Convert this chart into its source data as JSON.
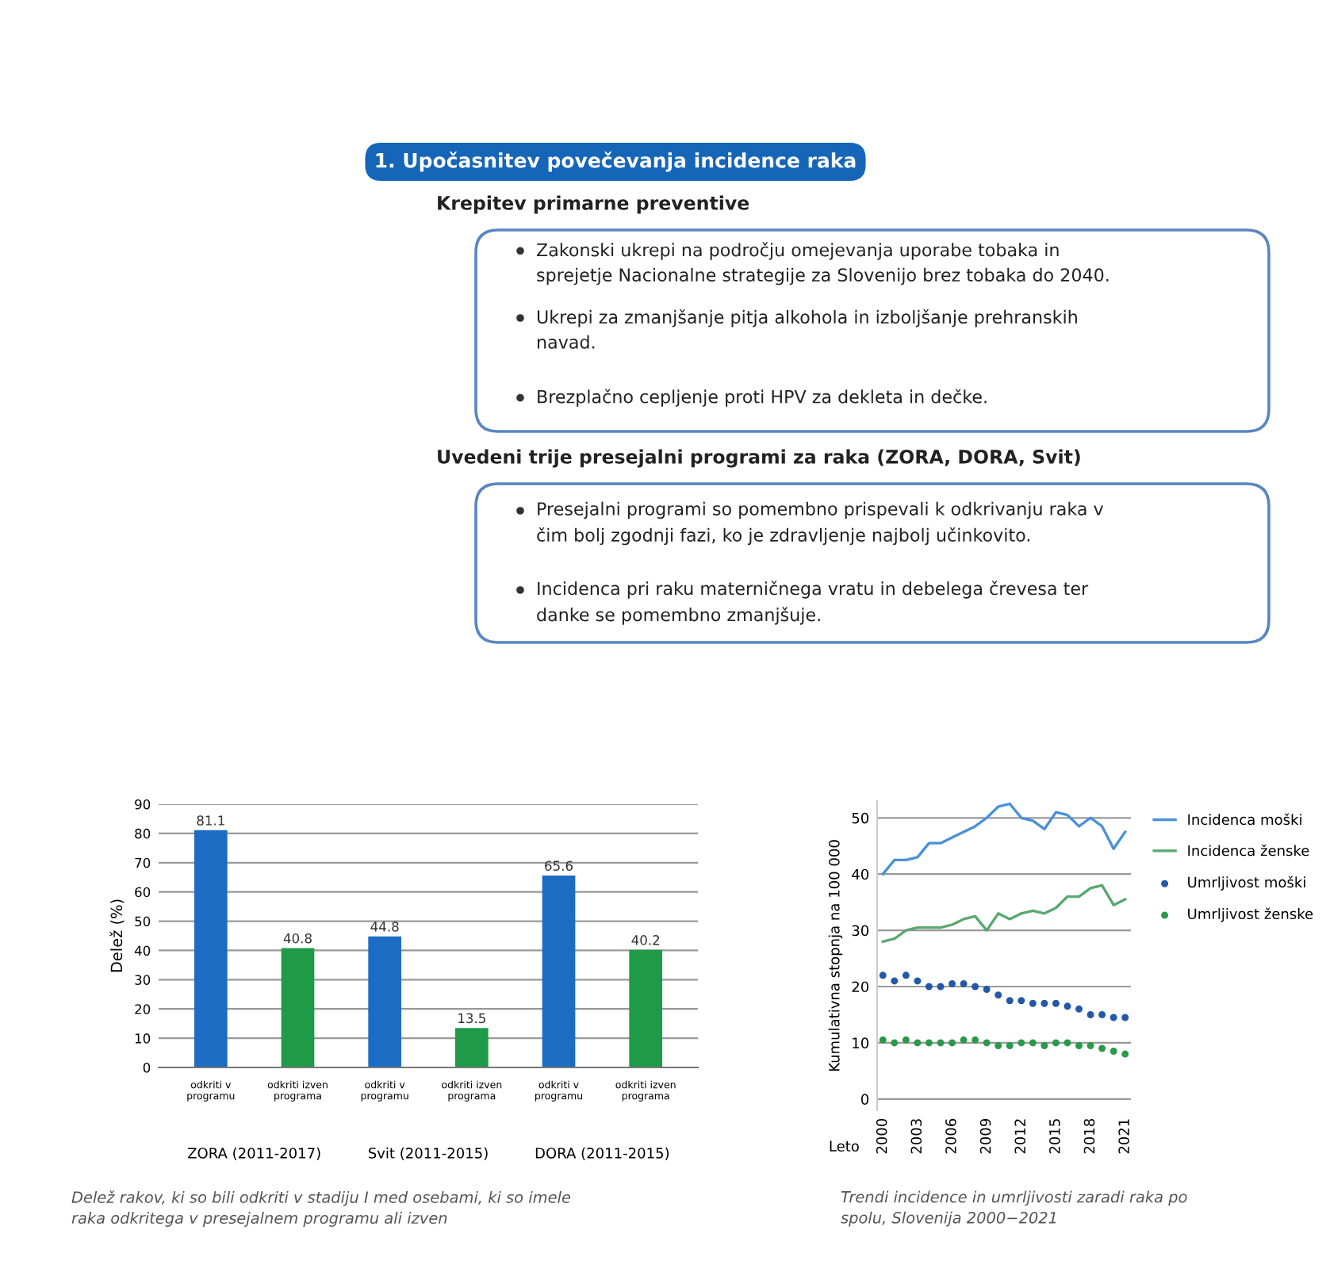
{
  "chart_data": [
    {
      "type": "other",
      "title": "1. Upočasnitev povečevanja incidence raka",
      "subtitle": "Krepitev primarne preventive",
      "annotations": [
        "Zakonski ukrepi na področju omejevanja uporabe tobaka in\nsprejetje Nacionalne strategije za Slovenijo brez tobaka do 2040.",
        "Ukrepi za zmanjšanje pitja alkohola in izboljšanje prehranskih\nnavad.",
        "Brezplačno cepljenje proti HPV za dekleta in dečke."
      ]
    },
    {
      "type": "other",
      "subtitle": "Uvedeni trije presejalni programi za raka (ZORA, DORA, Svit)",
      "annotations": [
        "Presejalni programi so pomembno prispevali k odkrivanju raka v\nčim bolj zgodnji fazi, ko je zdravljenje najbolj učinkovito.",
        "Incidenca pri raku materničnega vratu in debelega črevesa ter\ndanke se pomembno zmanjšuje."
      ]
    },
    {
      "type": "bar",
      "ylabel": "Delež (%)",
      "categories": [
        "odkriti v\nprogramu",
        "odkriti izven\nprograma",
        "odkriti v\nprogramu",
        "odkriti izven\nprograma",
        "odkriti v\nprogramu",
        "odkriti izven\nprograma"
      ],
      "values": [
        81.1,
        40.8,
        44.8,
        13.5,
        65.6,
        40.2
      ],
      "colors": [
        "#1c6cc4",
        "#1e9a48",
        "#1c6cc4",
        "#1e9a48",
        "#1c6cc4",
        "#1e9a48"
      ],
      "ylim": [
        0,
        90
      ],
      "yticks": [
        0,
        10,
        20,
        30,
        40,
        50,
        60,
        70,
        80,
        90
      ],
      "grid": "y",
      "data_labels": true,
      "annotations": [
        "ZORA (2011-2017)",
        "Svit (2011-2015)",
        "DORA (2011-2015)",
        "Delež rakov, ki so bili odkriti v stadiju I med osebami, ki so imele\nraka odkritega v presejalnem programu ali izven"
      ]
    },
    {
      "type": "line",
      "xlabel": "Leto",
      "ylabel": "Kumulativna stopnja na 100 000",
      "x": [
        2000,
        2001,
        2002,
        2003,
        2004,
        2005,
        2006,
        2007,
        2008,
        2009,
        2010,
        2011,
        2012,
        2013,
        2014,
        2015,
        2016,
        2017,
        2018,
        2019,
        2020,
        2021
      ],
      "series": [
        {
          "name": "Incidenca moški",
          "color": "#4a90d9",
          "values": [
            40,
            42.5,
            42.5,
            43,
            45.5,
            45.5,
            46.5,
            47.5,
            48.5,
            50,
            52,
            52.5,
            50,
            49.5,
            48,
            51,
            50.5,
            48.5,
            50,
            48.5,
            44.5,
            47.5
          ]
        },
        {
          "name": "Incidenca ženske",
          "color": "#5aa870",
          "values": [
            28,
            28.5,
            30,
            30.5,
            30.5,
            30.5,
            31,
            32,
            32.5,
            30,
            33,
            32,
            33,
            33.5,
            33,
            34,
            36,
            36,
            37.5,
            38,
            34.5,
            35.5
          ]
        },
        {
          "name": "Umrljivost moški",
          "type": "scatter",
          "marker": "circle",
          "color": "#2458a8",
          "values": [
            22,
            21,
            22,
            21,
            20,
            20,
            20.5,
            20.5,
            20,
            19.5,
            18.5,
            17.5,
            17.5,
            17,
            17,
            17,
            16.5,
            16,
            15,
            15,
            14.5,
            14.5
          ]
        },
        {
          "name": "Umrljivost ženske",
          "type": "scatter",
          "marker": "circle",
          "color": "#2a9a4a",
          "values": [
            10.5,
            10,
            10.5,
            10,
            10,
            10,
            10,
            10.5,
            10.5,
            10,
            9.5,
            9.5,
            10,
            10,
            9.5,
            10,
            10,
            9.5,
            9.5,
            9,
            8.5,
            8
          ]
        }
      ],
      "ylim": [
        -2,
        53
      ],
      "yticks": [
        0,
        10,
        20,
        30,
        40,
        50
      ],
      "xlim": [
        1999.5,
        2021.5
      ],
      "xticks": [
        2000,
        2003,
        2006,
        2009,
        2012,
        2015,
        2018,
        2021
      ],
      "grid": "y",
      "legend": "right",
      "annotations": [
        "Trendi incidence in umrljivosti zaradi raka po\nspolu, Slovenija 2000−2021"
      ]
    }
  ]
}
